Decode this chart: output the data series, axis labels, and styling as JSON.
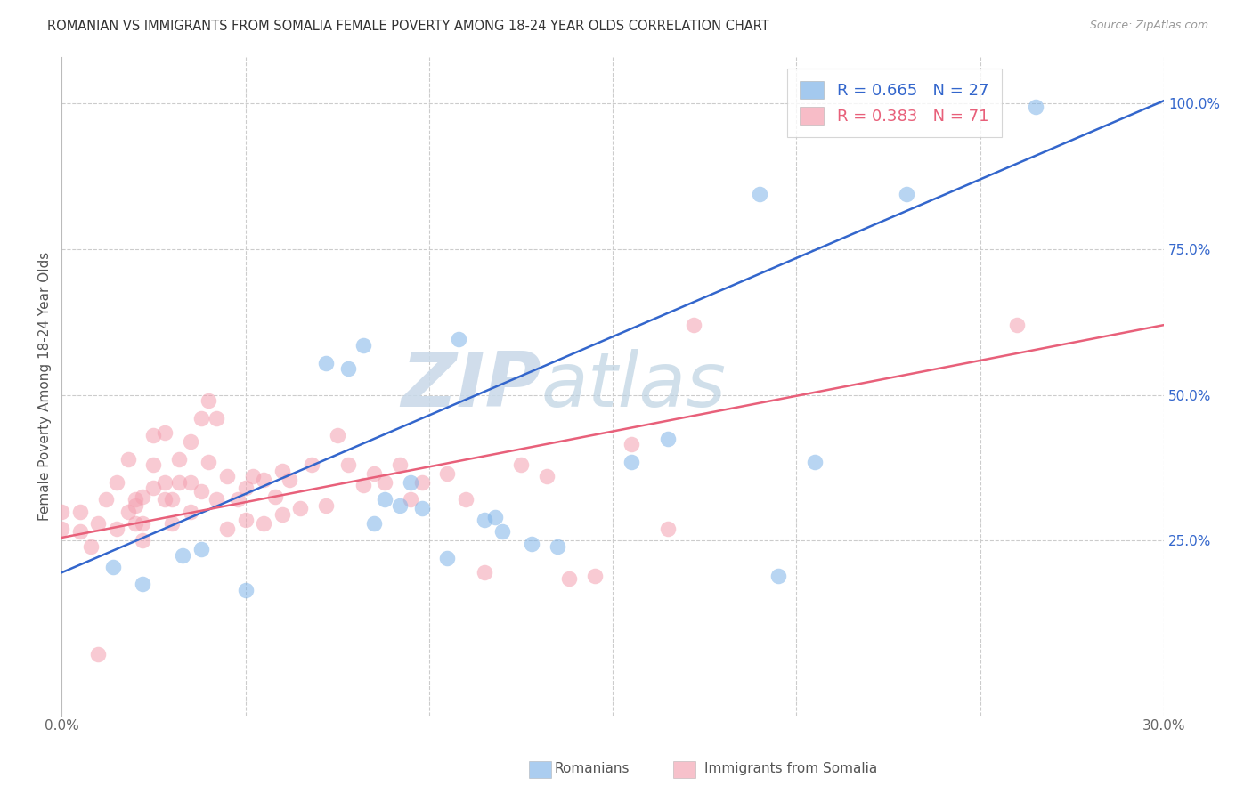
{
  "title": "ROMANIAN VS IMMIGRANTS FROM SOMALIA FEMALE POVERTY AMONG 18-24 YEAR OLDS CORRELATION CHART",
  "source": "Source: ZipAtlas.com",
  "ylabel": "Female Poverty Among 18-24 Year Olds",
  "xlim": [
    0.0,
    0.3
  ],
  "ylim": [
    -0.05,
    1.08
  ],
  "blue_color": "#7EB3E8",
  "pink_color": "#F4A0B0",
  "blue_line_color": "#3366CC",
  "pink_line_color": "#E8607A",
  "legend_R_blue": "0.665",
  "legend_N_blue": "27",
  "legend_R_pink": "0.383",
  "legend_N_pink": "71",
  "watermark_zip": "ZIP",
  "watermark_atlas": "atlas",
  "label_blue": "Romanians",
  "label_pink": "Immigrants from Somalia",
  "blue_scatter_x": [
    0.014,
    0.022,
    0.033,
    0.038,
    0.05,
    0.072,
    0.078,
    0.082,
    0.085,
    0.088,
    0.092,
    0.095,
    0.098,
    0.105,
    0.108,
    0.115,
    0.118,
    0.12,
    0.128,
    0.135,
    0.155,
    0.165,
    0.19,
    0.195,
    0.205,
    0.23,
    0.265
  ],
  "blue_scatter_y": [
    0.205,
    0.175,
    0.225,
    0.235,
    0.165,
    0.555,
    0.545,
    0.585,
    0.28,
    0.32,
    0.31,
    0.35,
    0.305,
    0.22,
    0.595,
    0.285,
    0.29,
    0.265,
    0.245,
    0.24,
    0.385,
    0.425,
    0.845,
    0.19,
    0.385,
    0.845,
    0.995
  ],
  "pink_scatter_x": [
    0.0,
    0.0,
    0.005,
    0.005,
    0.008,
    0.01,
    0.01,
    0.012,
    0.015,
    0.015,
    0.018,
    0.018,
    0.02,
    0.02,
    0.02,
    0.022,
    0.022,
    0.022,
    0.025,
    0.025,
    0.025,
    0.028,
    0.028,
    0.028,
    0.03,
    0.03,
    0.032,
    0.032,
    0.035,
    0.035,
    0.035,
    0.038,
    0.038,
    0.04,
    0.04,
    0.042,
    0.042,
    0.045,
    0.045,
    0.048,
    0.05,
    0.05,
    0.052,
    0.055,
    0.055,
    0.058,
    0.06,
    0.06,
    0.062,
    0.065,
    0.068,
    0.072,
    0.075,
    0.078,
    0.082,
    0.085,
    0.088,
    0.092,
    0.095,
    0.098,
    0.105,
    0.11,
    0.115,
    0.125,
    0.132,
    0.138,
    0.145,
    0.155,
    0.165,
    0.172,
    0.26
  ],
  "pink_scatter_y": [
    0.27,
    0.3,
    0.265,
    0.3,
    0.24,
    0.055,
    0.28,
    0.32,
    0.27,
    0.35,
    0.3,
    0.39,
    0.28,
    0.31,
    0.32,
    0.25,
    0.28,
    0.325,
    0.34,
    0.38,
    0.43,
    0.32,
    0.35,
    0.435,
    0.28,
    0.32,
    0.35,
    0.39,
    0.3,
    0.35,
    0.42,
    0.335,
    0.46,
    0.385,
    0.49,
    0.32,
    0.46,
    0.27,
    0.36,
    0.32,
    0.285,
    0.34,
    0.36,
    0.28,
    0.355,
    0.325,
    0.295,
    0.37,
    0.355,
    0.305,
    0.38,
    0.31,
    0.43,
    0.38,
    0.345,
    0.365,
    0.35,
    0.38,
    0.32,
    0.35,
    0.365,
    0.32,
    0.195,
    0.38,
    0.36,
    0.185,
    0.19,
    0.415,
    0.27,
    0.62,
    0.62
  ],
  "blue_line_x0": 0.0,
  "blue_line_y0": 0.195,
  "blue_line_x1": 0.3,
  "blue_line_y1": 1.005,
  "pink_line_x0": 0.0,
  "pink_line_y0": 0.255,
  "pink_line_x1": 0.3,
  "pink_line_y1": 0.62
}
